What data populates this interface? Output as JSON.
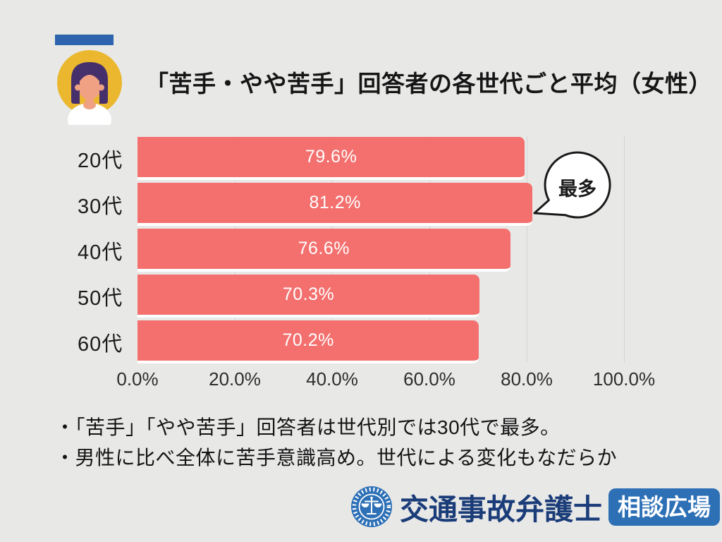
{
  "header": {
    "avatar": "woman-avatar",
    "title": "「苦手・やや苦手」回答者の各世代ごと平均（女性）"
  },
  "chart_data": {
    "type": "bar",
    "orientation": "horizontal",
    "title": "「苦手・やや苦手」回答者の各世代ごと平均（女性）",
    "categories": [
      "20代",
      "30代",
      "40代",
      "50代",
      "60代"
    ],
    "values": [
      79.6,
      81.2,
      76.6,
      70.3,
      70.2
    ],
    "value_labels": [
      "79.6%",
      "81.2%",
      "76.6%",
      "70.3%",
      "70.2%"
    ],
    "x_ticks": [
      "0.0%",
      "20.0%",
      "40.0%",
      "60.0%",
      "80.0%",
      "100.0%"
    ],
    "xlim": [
      0,
      100
    ],
    "grid": true,
    "legend": false,
    "bar_color": "#F3706E",
    "annotation": {
      "text": "最多",
      "target_category": "30代",
      "target_value": 81.2
    }
  },
  "notes": {
    "lines": [
      "・「苦手」「やや苦手」回答者は世代別では30代で最多。",
      "・男性に比べ全体に苦手意識高め。世代による変化もなだらか"
    ]
  },
  "footer": {
    "logo_icon": "scales-of-justice-icon",
    "logo_text": "交通事故弁護士",
    "badge_text": "相談広場"
  },
  "colors": {
    "background": "#E8E8E7",
    "accent_bar": "#2E64AD",
    "bar": "#F3706E",
    "bar_value_text": "#FFFFFF",
    "gridline": "#D4D4D4",
    "title_text": "#161616",
    "logo_text": "#1A3C78",
    "badge_bg": "#2D70B6",
    "avatar_bg": "#EAB72F",
    "avatar_hair": "#46306C",
    "avatar_skin": "#F0A183"
  }
}
